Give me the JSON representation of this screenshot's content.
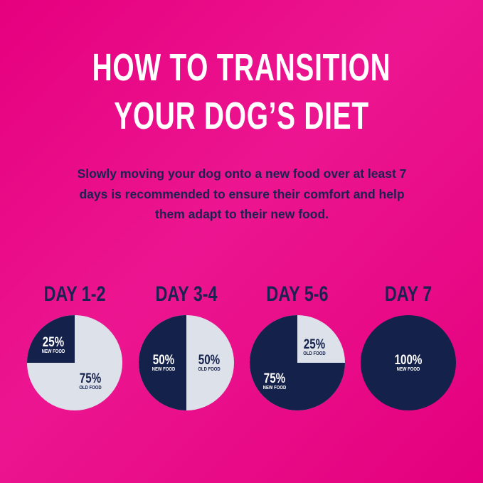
{
  "title_line1": "HOW TO TRANSITION",
  "title_line2": "YOUR DOG’S DIET",
  "intro": "Slowly moving your dog onto a new food over at least 7 days is recommended to ensure their comfort and help them adapt to their new food.",
  "colors": {
    "background": "#e6007e",
    "new_food": "#14214b",
    "old_food": "#dde1ea",
    "heading_dark": "#1a2350"
  },
  "chart_data": [
    {
      "type": "pie",
      "title": "DAY 1-2",
      "slices": [
        {
          "label": "NEW FOOD",
          "value": 25,
          "text": "25%"
        },
        {
          "label": "OLD FOOD",
          "value": 75,
          "text": "75%"
        }
      ]
    },
    {
      "type": "pie",
      "title": "DAY 3-4",
      "slices": [
        {
          "label": "NEW FOOD",
          "value": 50,
          "text": "50%"
        },
        {
          "label": "OLD FOOD",
          "value": 50,
          "text": "50%"
        }
      ]
    },
    {
      "type": "pie",
      "title": "DAY 5-6",
      "slices": [
        {
          "label": "NEW FOOD",
          "value": 75,
          "text": "75%"
        },
        {
          "label": "OLD FOOD",
          "value": 25,
          "text": "25%"
        }
      ]
    },
    {
      "type": "pie",
      "title": "DAY 7",
      "slices": [
        {
          "label": "NEW FOOD",
          "value": 100,
          "text": "100%"
        }
      ]
    }
  ]
}
